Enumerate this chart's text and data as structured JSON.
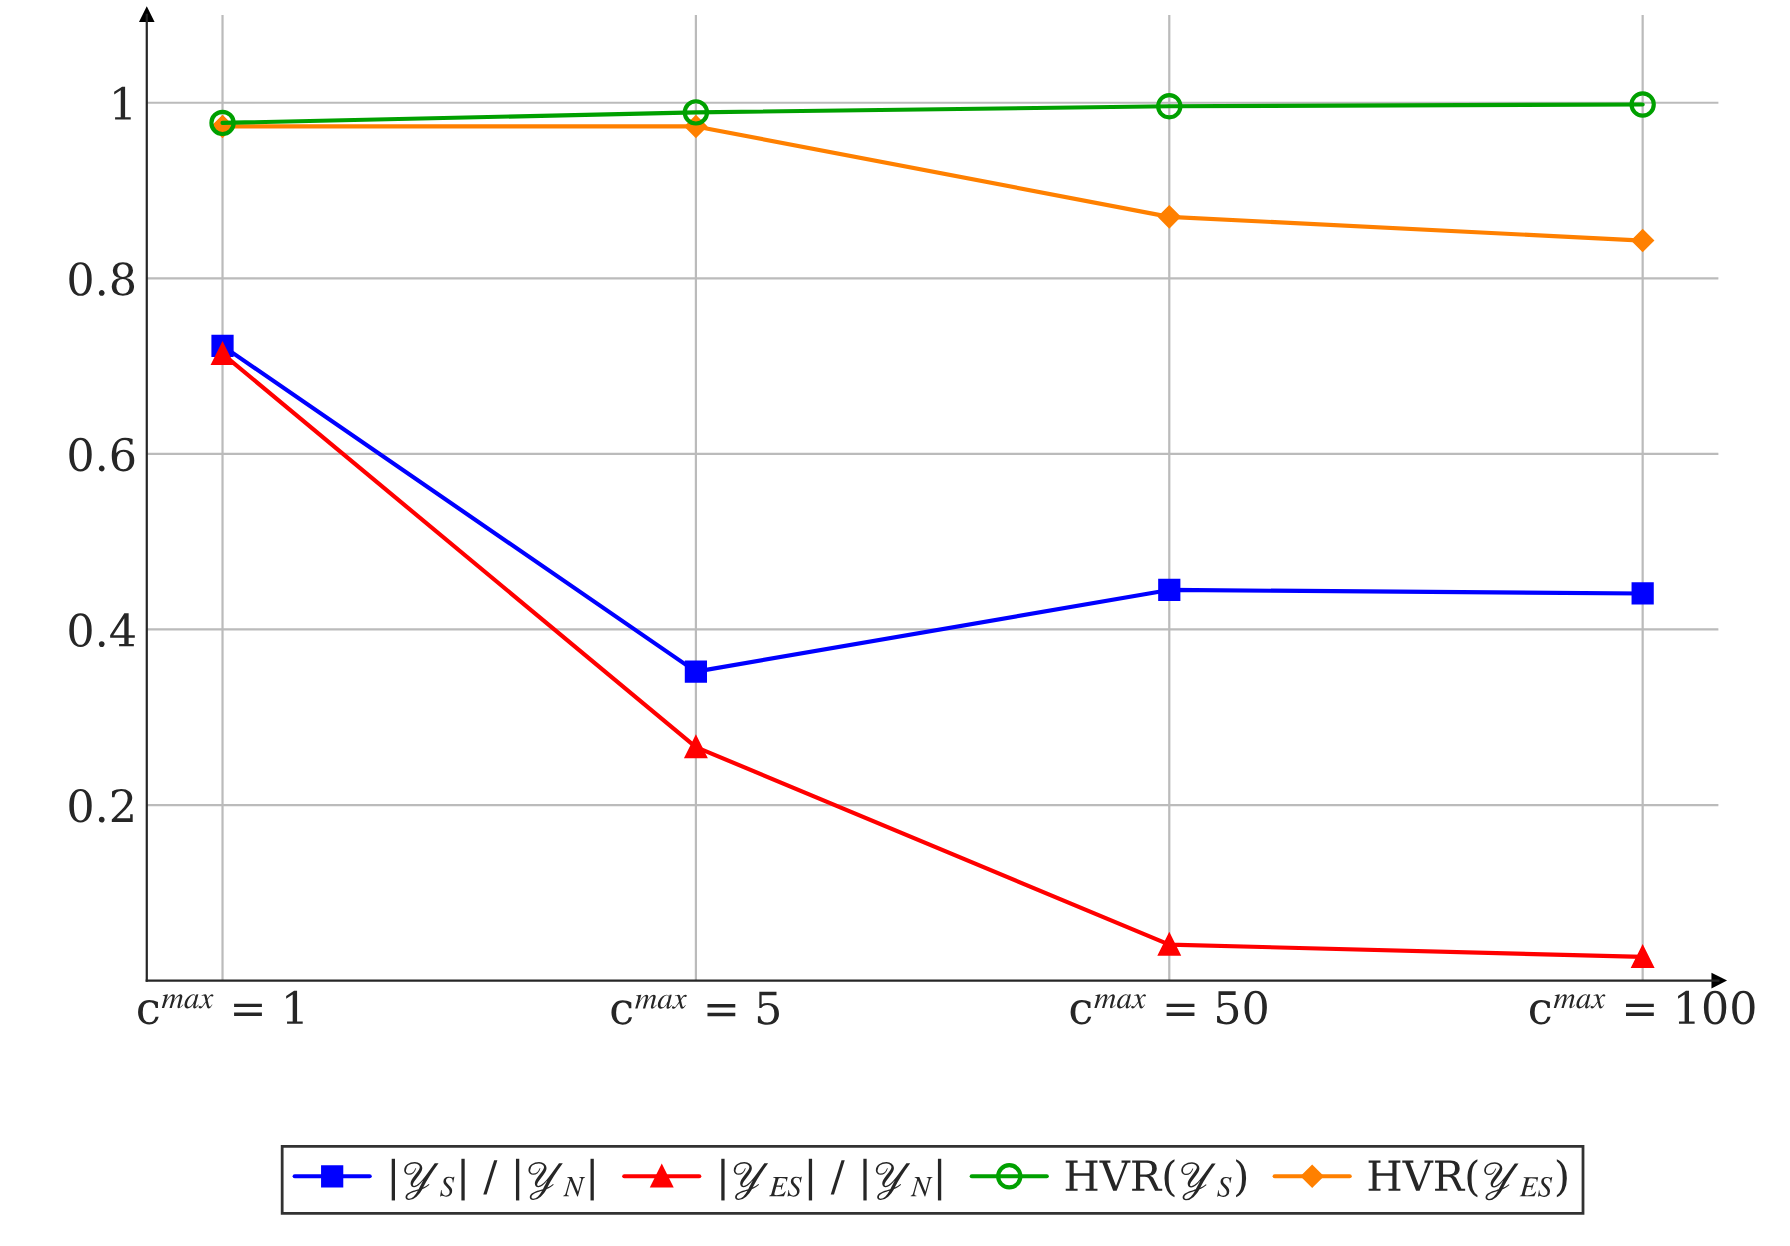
{
  "chart_data": {
    "type": "line",
    "categories": [
      "c$^{max}$ = 1",
      "c$^{max}$ = 5",
      "c$^{max}$ = 50",
      "c$^{max}$ = 100"
    ],
    "series": [
      {
        "name": "|𝒴$_{S}$| / |𝒴$_{N}$|",
        "color": "#0000ff",
        "marker": "square",
        "values": [
          0.723,
          0.352,
          0.445,
          0.441
        ]
      },
      {
        "name": "|𝒴$_{ES}$| / |𝒴$_{N}$|",
        "color": "#ff0000",
        "marker": "triangle",
        "values": [
          0.714,
          0.266,
          0.041,
          0.027
        ]
      },
      {
        "name": "HVR(𝒴$_{S}$)",
        "color": "#00a000",
        "marker": "circle",
        "values": [
          0.977,
          0.989,
          0.996,
          0.998
        ]
      },
      {
        "name": "HVR(𝒴$_{ES}$)",
        "color": "#ff8000",
        "marker": "diamond",
        "values": [
          0.973,
          0.973,
          0.87,
          0.843
        ]
      }
    ],
    "ylim": [
      0,
      1.1
    ],
    "yticks": [
      0.2,
      0.4,
      0.6,
      0.8,
      1
    ],
    "grid": true,
    "legend": "bottom",
    "line_style": "solid"
  }
}
